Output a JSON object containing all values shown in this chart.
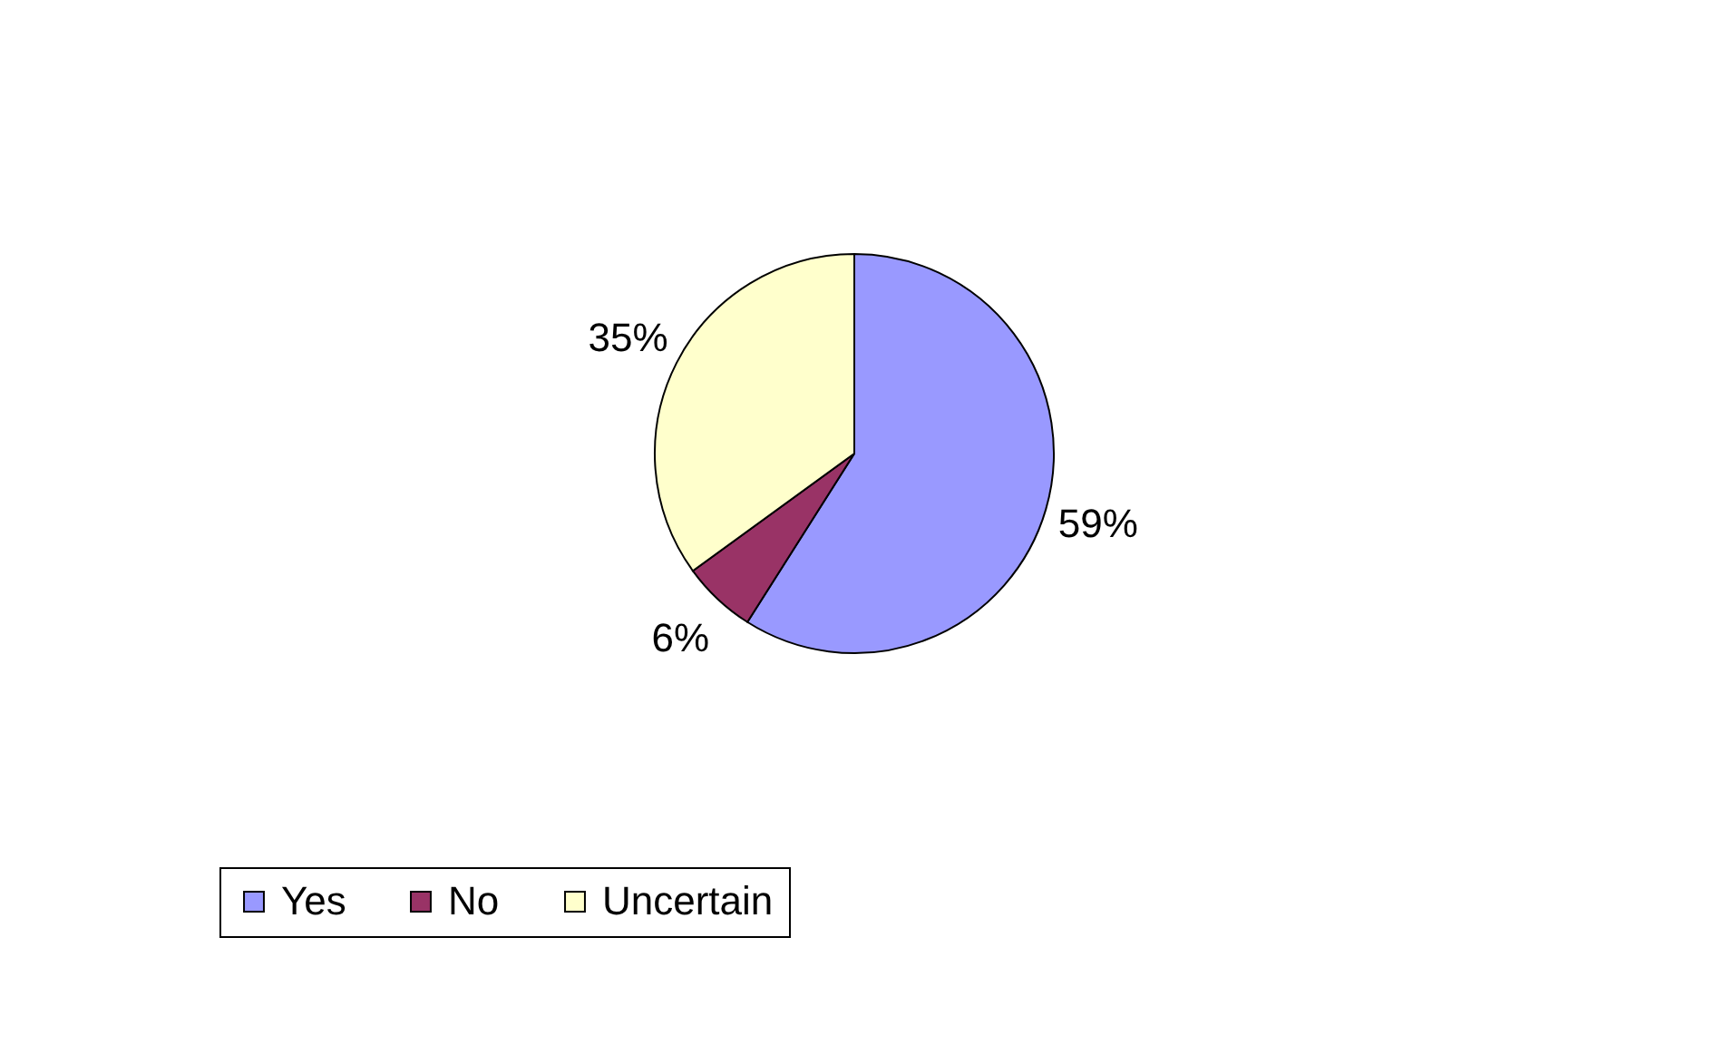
{
  "chart_data": {
    "type": "pie",
    "categories": [
      "Yes",
      "No",
      "Uncertain"
    ],
    "values": [
      59,
      6,
      35
    ],
    "colors": [
      "#9999ff",
      "#993366",
      "#ffffcc"
    ],
    "value_labels": [
      "59%",
      "6%",
      "35%"
    ],
    "legend": "bottom"
  }
}
